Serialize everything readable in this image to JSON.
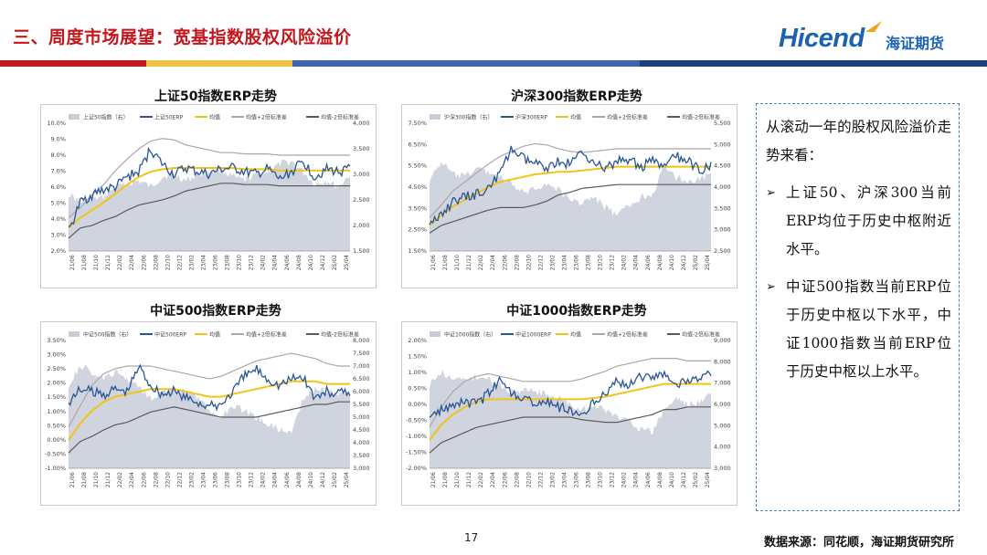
{
  "header": {
    "title": "三、周度市场展望：宽基指数股权风险溢价",
    "logo_en": "Hicend",
    "logo_cn": "海证期货"
  },
  "colors": {
    "title_red": "#c4161c",
    "brand_blue": "#1b63b0",
    "stripe": [
      "#c4161c",
      "#f1c33c",
      "#3a66b0",
      "#1e3f7a"
    ],
    "index_area": "#c8ccd8",
    "erp_line": "#2a5596",
    "mean_line": "#f2c318",
    "band_upper": "#a8a8a8",
    "band_lower": "#5a5a5a"
  },
  "charts": [
    {
      "title": "上证50指数ERP走势",
      "legend": [
        "上证50指数（右）",
        "上证50ERP",
        "均值",
        "均值+2倍标准差",
        "均值-2倍标准差"
      ],
      "left_ticks": [
        "10.0%",
        "9.0%",
        "8.0%",
        "7.0%",
        "6.0%",
        "5.0%",
        "4.0%",
        "3.0%",
        "2.0%"
      ],
      "right_ticks": [
        "4,000",
        "3,500",
        "3,000",
        "2,500",
        "2,000",
        "1,500"
      ],
      "x_ticks": [
        "21/06",
        "21/08",
        "21/10",
        "21/12",
        "22/02",
        "22/04",
        "22/06",
        "22/08",
        "22/10",
        "22/12",
        "23/02",
        "23/04",
        "23/06",
        "23/08",
        "23/10",
        "23/12",
        "24/02",
        "24/04",
        "24/06",
        "24/08",
        "24/10",
        "24/12",
        "25/02",
        "25/04"
      ]
    },
    {
      "title": "沪深300指数ERP走势",
      "legend": [
        "沪深300指数（右）",
        "沪深300ERP",
        "均值",
        "均值+2倍标准差",
        "均值-2倍标准差"
      ],
      "left_ticks": [
        "7.50%",
        "6.50%",
        "5.50%",
        "4.50%",
        "3.50%",
        "2.50%",
        "1.50%"
      ],
      "right_ticks": [
        "5,500",
        "5,000",
        "4,500",
        "4,000",
        "3,500",
        "3,000",
        "2,500"
      ],
      "x_ticks": [
        "21/06",
        "21/08",
        "21/10",
        "21/12",
        "22/02",
        "22/04",
        "22/06",
        "22/08",
        "22/10",
        "22/12",
        "23/02",
        "23/04",
        "23/06",
        "23/08",
        "23/10",
        "23/12",
        "24/02",
        "24/04",
        "24/06",
        "24/08",
        "24/10",
        "24/12",
        "25/02",
        "25/04"
      ]
    },
    {
      "title": "中证500指数ERP走势",
      "legend": [
        "中证500指数（右）",
        "中证500ERP",
        "均值",
        "均值+2倍标准差",
        "均值-2倍标准差"
      ],
      "left_ticks": [
        "3.50%",
        "3.00%",
        "2.50%",
        "2.00%",
        "1.50%",
        "1.00%",
        "0.50%",
        "0.00%",
        "-0.50%",
        "-1.00%"
      ],
      "right_ticks": [
        "8,000",
        "7,500",
        "7,000",
        "6,500",
        "6,000",
        "5,500",
        "5,000",
        "4,500",
        "4,000",
        "3,500",
        "3,000"
      ],
      "x_ticks": [
        "21/06",
        "21/08",
        "21/10",
        "21/12",
        "22/02",
        "22/04",
        "22/06",
        "22/08",
        "22/10",
        "22/12",
        "23/02",
        "23/04",
        "23/06",
        "23/08",
        "23/10",
        "23/12",
        "24/02",
        "24/04",
        "24/06",
        "24/08",
        "24/10",
        "24/12",
        "25/02",
        "25/04"
      ]
    },
    {
      "title": "中证1000指数ERP走势",
      "legend": [
        "中证1000指数（右）",
        "中证1000ERP",
        "均值",
        "均值+2倍标准差",
        "均值-2倍标准差"
      ],
      "left_ticks": [
        "2.00%",
        "1.50%",
        "1.00%",
        "0.50%",
        "0.00%",
        "-0.50%",
        "-1.00%",
        "-1.50%",
        "-2.00%"
      ],
      "right_ticks": [
        "9,000",
        "8,000",
        "7,000",
        "6,000",
        "5,000",
        "4,000",
        "3,000"
      ],
      "x_ticks": [
        "21/06",
        "21/08",
        "21/10",
        "21/12",
        "22/02",
        "22/04",
        "22/06",
        "22/08",
        "22/10",
        "22/12",
        "23/02",
        "23/04",
        "23/06",
        "23/08",
        "23/10",
        "23/12",
        "24/02",
        "24/04",
        "24/06",
        "24/08",
        "24/10",
        "24/12",
        "25/02",
        "25/04"
      ]
    }
  ],
  "sidebar": {
    "intro": "从滚动一年的股权风险溢价走势来看：",
    "bullets": [
      "上证50、沪深300当前ERP均位于历史中枢附近水平。",
      "中证500指数当前ERP位于历史中枢以下水平，中证1000指数当前ERP位于历史中枢以上水平。"
    ],
    "bullet_mark": "➢"
  },
  "footer": {
    "page_number": "17",
    "source": "数据来源：同花顺，海证期货研究所"
  }
}
